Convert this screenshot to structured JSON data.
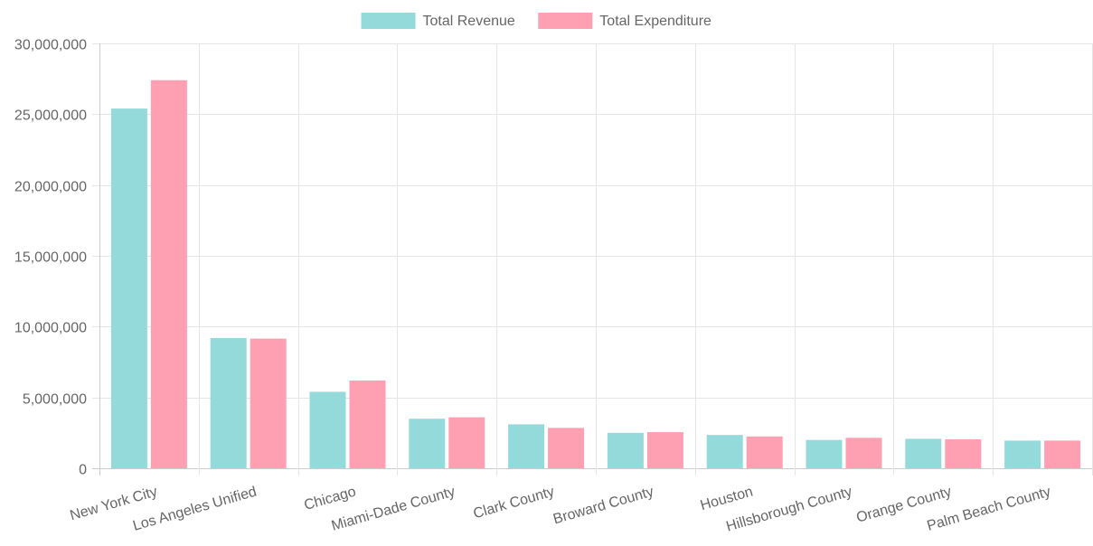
{
  "chart_data": {
    "type": "bar",
    "title": "",
    "xlabel": "",
    "ylabel": "",
    "categories": [
      "New York City",
      "Los Angeles Unified",
      "Chicago",
      "Miami-Dade County",
      "Clark County",
      "Broward County",
      "Houston",
      "Hillsborough County",
      "Orange County",
      "Palm Beach County"
    ],
    "series": [
      {
        "name": "Total Revenue",
        "color": "#94dadb",
        "values": [
          25400000,
          9200000,
          5400000,
          3500000,
          3100000,
          2500000,
          2350000,
          2000000,
          2080000,
          1950000
        ]
      },
      {
        "name": "Total Expenditure",
        "color": "#ff9fb2",
        "values": [
          27400000,
          9150000,
          6200000,
          3600000,
          2850000,
          2550000,
          2250000,
          2150000,
          2050000,
          1950000
        ]
      }
    ],
    "ylim": [
      0,
      30000000
    ],
    "yticks": [
      "0",
      "5,000,000",
      "10,000,000",
      "15,000,000",
      "20,000,000",
      "25,000,000",
      "30,000,000"
    ],
    "legend_position": "top-center",
    "grid": true
  }
}
